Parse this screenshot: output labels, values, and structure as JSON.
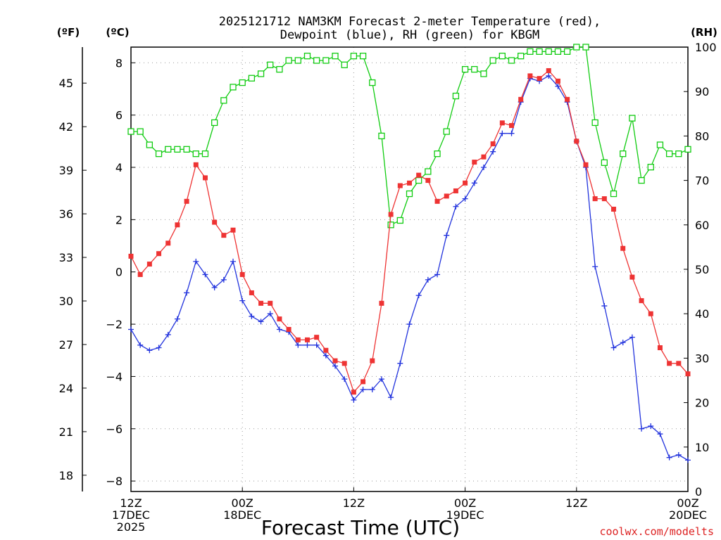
{
  "chart_data": {
    "type": "line",
    "title_line1": "2025121712 NAM3KM Forecast 2-meter Temperature (red),",
    "title_line2": "Dewpoint (blue), RH (green) for KBGM",
    "xlabel": "Forecast Time (UTC)",
    "watermark": "coolwx.com/modelts",
    "units": {
      "fahrenheit": "(ºF)",
      "celsius": "(ºC)",
      "rh": "(RH)"
    },
    "x_range_hours": [
      0,
      60
    ],
    "ylim_c": [
      -8.4,
      8.6
    ],
    "ylim_rh": [
      0,
      100
    ],
    "x_ticks": [
      {
        "hour": 0,
        "lines": [
          "12Z",
          "17DEC",
          "2025"
        ]
      },
      {
        "hour": 12,
        "lines": [
          "00Z",
          "18DEC"
        ]
      },
      {
        "hour": 24,
        "lines": [
          "12Z"
        ]
      },
      {
        "hour": 36,
        "lines": [
          "00Z",
          "19DEC"
        ]
      },
      {
        "hour": 48,
        "lines": [
          "12Z"
        ]
      },
      {
        "hour": 60,
        "lines": [
          "00Z",
          "20DEC"
        ]
      }
    ],
    "c_ticks": [
      8,
      6,
      4,
      2,
      0,
      -2,
      -4,
      -6,
      -8
    ],
    "f_ticks": [
      45,
      42,
      39,
      36,
      33,
      30,
      27,
      24,
      21,
      18
    ],
    "rh_ticks": [
      100,
      90,
      80,
      70,
      60,
      50,
      40,
      30,
      20,
      10,
      0
    ],
    "colors": {
      "temperature": "#ee3333",
      "dewpoint": "#2233dd",
      "rh": "#11cc11",
      "grid": "#999999",
      "watermark": "#dd2222"
    },
    "hours": [
      0,
      1,
      2,
      3,
      4,
      5,
      6,
      7,
      8,
      9,
      10,
      11,
      12,
      13,
      14,
      15,
      16,
      17,
      18,
      19,
      20,
      21,
      22,
      23,
      24,
      25,
      26,
      27,
      28,
      29,
      30,
      31,
      32,
      33,
      34,
      35,
      36,
      37,
      38,
      39,
      40,
      41,
      42,
      43,
      44,
      45,
      46,
      47,
      48,
      49,
      50,
      51,
      52,
      53,
      54,
      55,
      56,
      57,
      58,
      59,
      60
    ],
    "series": [
      {
        "name": "Temperature (°C)",
        "values": [
          0.6,
          -0.1,
          0.3,
          0.7,
          1.1,
          1.8,
          2.7,
          4.1,
          3.6,
          1.9,
          1.4,
          1.6,
          -0.1,
          -0.8,
          -1.2,
          -1.2,
          -1.8,
          -2.2,
          -2.6,
          -2.6,
          -2.5,
          -3.0,
          -3.4,
          -3.5,
          -4.6,
          -4.2,
          -3.4,
          -1.2,
          2.2,
          3.3,
          3.4,
          3.7,
          3.5,
          2.7,
          2.9,
          3.1,
          3.4,
          4.2,
          4.4,
          4.9,
          5.7,
          5.6,
          6.6,
          7.5,
          7.4,
          7.7,
          7.3,
          6.6,
          5.0,
          4.1,
          2.8,
          2.8,
          2.4,
          0.9,
          -0.2,
          -1.1,
          -1.6,
          -2.9,
          -3.5,
          -3.5,
          -3.9
        ]
      },
      {
        "name": "Dewpoint (°C)",
        "values": [
          -2.2,
          -2.8,
          -3.0,
          -2.9,
          -2.4,
          -1.8,
          -0.8,
          0.4,
          -0.1,
          -0.6,
          -0.3,
          0.4,
          -1.1,
          -1.7,
          -1.9,
          -1.6,
          -2.2,
          -2.3,
          -2.8,
          -2.8,
          -2.8,
          -3.2,
          -3.6,
          -4.1,
          -4.9,
          -4.5,
          -4.5,
          -4.1,
          -4.8,
          -3.5,
          -2.0,
          -0.9,
          -0.3,
          -0.1,
          1.4,
          2.5,
          2.8,
          3.4,
          4.0,
          4.6,
          5.3,
          5.3,
          6.5,
          7.4,
          7.3,
          7.5,
          7.1,
          6.5,
          5.0,
          4.0,
          0.2,
          -1.3,
          -2.9,
          -2.7,
          -2.5,
          -6.0,
          -5.9,
          -6.2,
          -7.1,
          -7.0,
          -7.2
        ]
      },
      {
        "name": "RH (%)",
        "values": [
          81,
          81,
          78,
          76,
          77,
          77,
          77,
          76,
          76,
          83,
          88,
          91,
          92,
          93,
          94,
          96,
          95,
          97,
          97,
          98,
          97,
          97,
          98,
          96,
          98,
          98,
          92,
          80,
          60,
          61,
          67,
          70,
          72,
          76,
          81,
          89,
          95,
          95,
          94,
          97,
          98,
          97,
          98,
          99,
          99,
          99,
          99,
          99,
          100,
          100,
          83,
          74,
          67,
          76,
          84,
          70,
          73,
          78,
          76,
          76,
          77
        ]
      }
    ]
  }
}
